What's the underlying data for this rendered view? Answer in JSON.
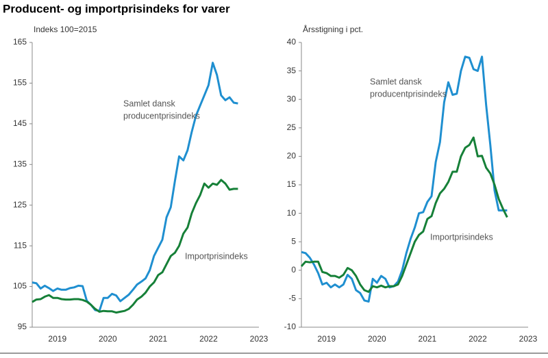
{
  "title": "Producent- og importprisindeks for varer",
  "chart_data": [
    {
      "type": "line",
      "y_label": "Indeks 100=2015",
      "annotations": [
        {
          "text": [
            "Samlet dansk",
            "producentprisindeks"
          ]
        },
        {
          "text": [
            "Importprisindeks"
          ]
        }
      ],
      "categories": [
        null,
        null,
        null,
        null,
        null,
        null,
        "2019",
        null,
        null,
        null,
        null,
        null,
        null,
        null,
        null,
        null,
        null,
        null,
        "2020",
        null,
        null,
        null,
        null,
        null,
        null,
        null,
        null,
        null,
        null,
        null,
        "2021",
        null,
        null,
        null,
        null,
        null,
        null,
        null,
        null,
        null,
        null,
        null,
        "2022",
        null,
        null,
        null,
        null,
        null,
        null,
        null,
        null,
        null,
        null,
        null,
        "2023"
      ],
      "series": [
        {
          "name": "Samlet dansk producentprisindeks",
          "color": "#1f8fd0",
          "values": [
            106,
            105.8,
            104.5,
            105.2,
            104.6,
            103.9,
            104.5,
            104.2,
            104.2,
            104.6,
            104.8,
            105.2,
            105.1,
            101.5,
            100.5,
            99.2,
            99,
            102.2,
            102.2,
            103.2,
            102.8,
            101.4,
            102.2,
            103,
            104.2,
            105.5,
            106.2,
            107,
            109,
            112.5,
            114.5,
            116.5,
            122,
            124.5,
            131,
            137,
            136,
            138.5,
            143,
            147,
            149.5,
            152,
            154.5,
            160,
            157,
            152,
            150.8,
            151.5,
            150.2,
            150,
            null,
            null,
            null,
            null,
            null
          ]
        },
        {
          "name": "Importprisindeks",
          "color": "#168038",
          "values": [
            101.2,
            101.8,
            101.9,
            102.5,
            102.9,
            102.2,
            102.2,
            101.9,
            101.8,
            101.8,
            101.9,
            101.9,
            101.7,
            101.3,
            100.5,
            99.5,
            98.8,
            99,
            98.9,
            98.9,
            98.6,
            98.8,
            99,
            99.5,
            100.5,
            101.8,
            102.5,
            103.5,
            105,
            106,
            107.8,
            108.5,
            110.5,
            112.5,
            113.3,
            115,
            118,
            119.5,
            123,
            125.5,
            127.5,
            130.3,
            129.3,
            130.3,
            130,
            131.2,
            130.3,
            128.8,
            129,
            129,
            null,
            null,
            null,
            null,
            null
          ]
        }
      ],
      "ylim": [
        95,
        165
      ],
      "yticks": [
        95,
        105,
        115,
        125,
        135,
        145,
        155,
        165
      ]
    },
    {
      "type": "line",
      "y_label": "Årsstigning i pct.",
      "annotations": [
        {
          "text": [
            "Samlet dansk",
            "producentprisindeks"
          ]
        },
        {
          "text": [
            "Importprisindeks"
          ]
        }
      ],
      "categories": [
        null,
        null,
        null,
        null,
        null,
        null,
        "2019",
        null,
        null,
        null,
        null,
        null,
        null,
        null,
        null,
        null,
        null,
        null,
        "2020",
        null,
        null,
        null,
        null,
        null,
        null,
        null,
        null,
        null,
        null,
        null,
        "2021",
        null,
        null,
        null,
        null,
        null,
        null,
        null,
        null,
        null,
        null,
        null,
        "2022",
        null,
        null,
        null,
        null,
        null,
        null,
        null,
        null,
        null,
        null,
        null,
        "2023"
      ],
      "series": [
        {
          "name": "Samlet dansk producentprisindeks",
          "color": "#1f8fd0",
          "values": [
            3.2,
            3.0,
            2.2,
            1.0,
            -0.5,
            -2.5,
            -2.2,
            -3.0,
            -2.5,
            -3.0,
            -2.5,
            -0.8,
            -1.5,
            -3.5,
            -4,
            -5.3,
            -5.5,
            -1.5,
            -2.2,
            -1,
            -1.5,
            -3,
            -2.8,
            -2,
            0,
            3,
            5.5,
            7.5,
            10,
            10.2,
            12,
            13,
            19,
            22.5,
            29.5,
            33,
            30.8,
            31,
            35,
            37.5,
            37.3,
            35.3,
            35,
            37.5,
            29,
            22,
            14,
            10.5,
            10.5,
            10.5,
            null,
            null,
            null,
            null,
            null
          ]
        },
        {
          "name": "Importprisindeks",
          "color": "#168038",
          "values": [
            0.7,
            1.5,
            1.4,
            1.5,
            1.5,
            -0.3,
            -0.5,
            -1,
            -1,
            -1.3,
            -0.8,
            0.4,
            0,
            -1,
            -2.5,
            -3.5,
            -3.8,
            -2.8,
            -3,
            -2.7,
            -3,
            -2.8,
            -2.8,
            -2.5,
            -1,
            1,
            3,
            5,
            6.2,
            6.8,
            9,
            9.5,
            11.8,
            13.5,
            14.3,
            15.5,
            17.3,
            17.3,
            20,
            21.5,
            22,
            23.3,
            20,
            20.1,
            18,
            17,
            15,
            12.5,
            10.8,
            9.3,
            null,
            null,
            null,
            null,
            null
          ]
        }
      ],
      "ylim": [
        -10,
        40
      ],
      "yticks": [
        -10,
        -5,
        0,
        5,
        10,
        15,
        20,
        25,
        30,
        35,
        40
      ]
    }
  ]
}
